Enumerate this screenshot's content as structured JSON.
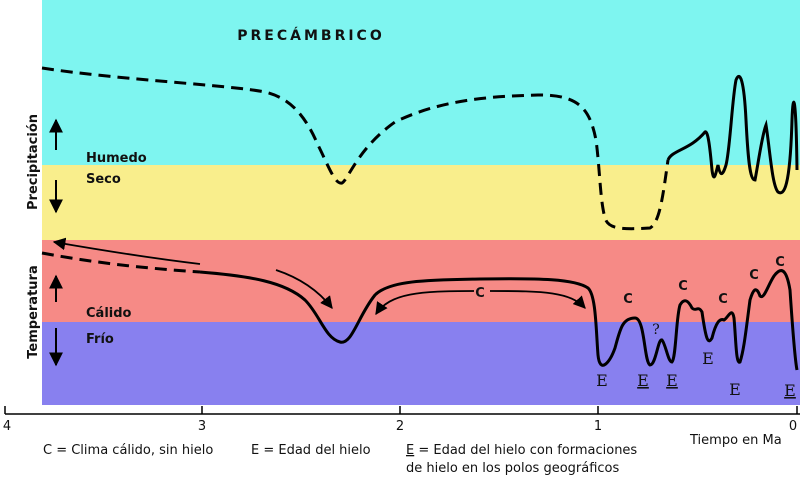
{
  "title": "PRECÁMBRICO",
  "y_labels": {
    "precipitation": "Precipitación",
    "temperature": "Temperatura"
  },
  "bands": {
    "humid": "Humedo",
    "dry": "Seco",
    "warm": "Cálido",
    "cold": "Frío"
  },
  "colors": {
    "humid": "#7EF5F0",
    "dry": "#F9EE8C",
    "warm": "#F68A86",
    "cold": "#8880EF",
    "line": "#000000"
  },
  "x_axis": {
    "label": "Tiempo en Ma",
    "ticks": [
      "4",
      "3",
      "2",
      "1",
      "0"
    ]
  },
  "markers": {
    "warm": "C",
    "ice": "E",
    "question": "?"
  },
  "legend": {
    "c": "C = Clima cálido, sin hielo",
    "e": "E = Edad del hielo",
    "e_polar_symbol": "E",
    "e_polar_text_1": " = Edad del hielo con formaciones",
    "e_polar_text_2": "de hielo en los polos geográficos"
  }
}
